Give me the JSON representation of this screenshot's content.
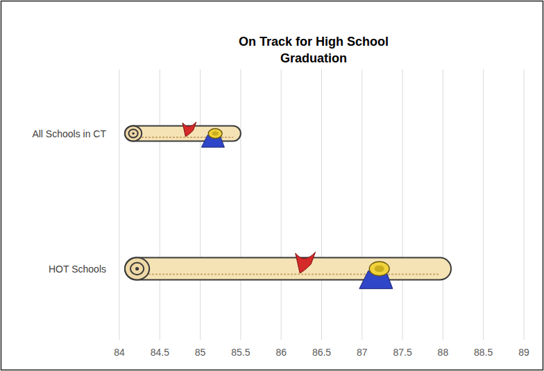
{
  "chart_data": {
    "type": "bar",
    "orientation": "horizontal",
    "title": "On Track for High School Graduation",
    "categories": [
      "All Schools in CT",
      "HOT Schools"
    ],
    "values": [
      85.5,
      88.1
    ],
    "color": "#f5e3b5",
    "xlim": [
      84,
      89
    ],
    "xticks": [
      84,
      84.5,
      85,
      85.5,
      86,
      86.5,
      87,
      87.5,
      88,
      88.5,
      89
    ],
    "grid": true
  }
}
